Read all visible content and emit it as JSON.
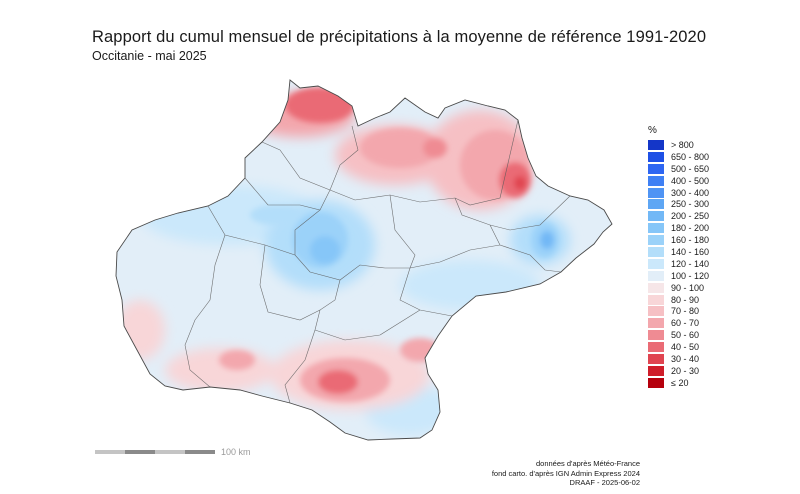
{
  "title": "Rapport du cumul mensuel de précipitations à la moyenne de référence 1991-2020",
  "subtitle": "Occitanie - mai 2025",
  "legend": {
    "unit": "%",
    "classes": [
      {
        "label": "> 800",
        "color": "#1436c8"
      },
      {
        "label": "650 - 800",
        "color": "#1e50e6"
      },
      {
        "label": "500 - 650",
        "color": "#2e66f2"
      },
      {
        "label": "400 - 500",
        "color": "#3f80f4"
      },
      {
        "label": "300 - 400",
        "color": "#4f94f4"
      },
      {
        "label": "250 - 300",
        "color": "#5ea6f4"
      },
      {
        "label": "200 - 250",
        "color": "#72b8f6"
      },
      {
        "label": "180 - 200",
        "color": "#86c6f8"
      },
      {
        "label": "160 - 180",
        "color": "#9bd2f9"
      },
      {
        "label": "140 - 160",
        "color": "#b3defa"
      },
      {
        "label": "120 - 140",
        "color": "#cbe8fb"
      },
      {
        "label": "100 - 120",
        "color": "#e2eef8"
      },
      {
        "label": "90 - 100",
        "color": "#f6e6e8"
      },
      {
        "label": "80 - 90",
        "color": "#f8d6d8"
      },
      {
        "label": "70 - 80",
        "color": "#f6c0c4"
      },
      {
        "label": "60 - 70",
        "color": "#f3a7ad"
      },
      {
        "label": "50 - 60",
        "color": "#ef8b93"
      },
      {
        "label": "40 - 50",
        "color": "#ea6b75"
      },
      {
        "label": "30 - 40",
        "color": "#e04450"
      },
      {
        "label": "20 - 30",
        "color": "#cf1d2a"
      },
      {
        "label": "≤ 20",
        "color": "#b5000d"
      }
    ]
  },
  "scale": {
    "label": "100 km",
    "colors": [
      "#c4c4c4",
      "#8a8a8a",
      "#c4c4c4",
      "#8a8a8a"
    ]
  },
  "credits": {
    "line1": "données d'après Météo-France",
    "line2": "fond carto. d'après IGN Admin Express 2024",
    "line3": "DRAAF - 2025-06-02"
  },
  "map": {
    "region_fill": "#e2eef8",
    "outline_color": "#4a4a4a",
    "boundary_color": "#5a5a5a"
  }
}
